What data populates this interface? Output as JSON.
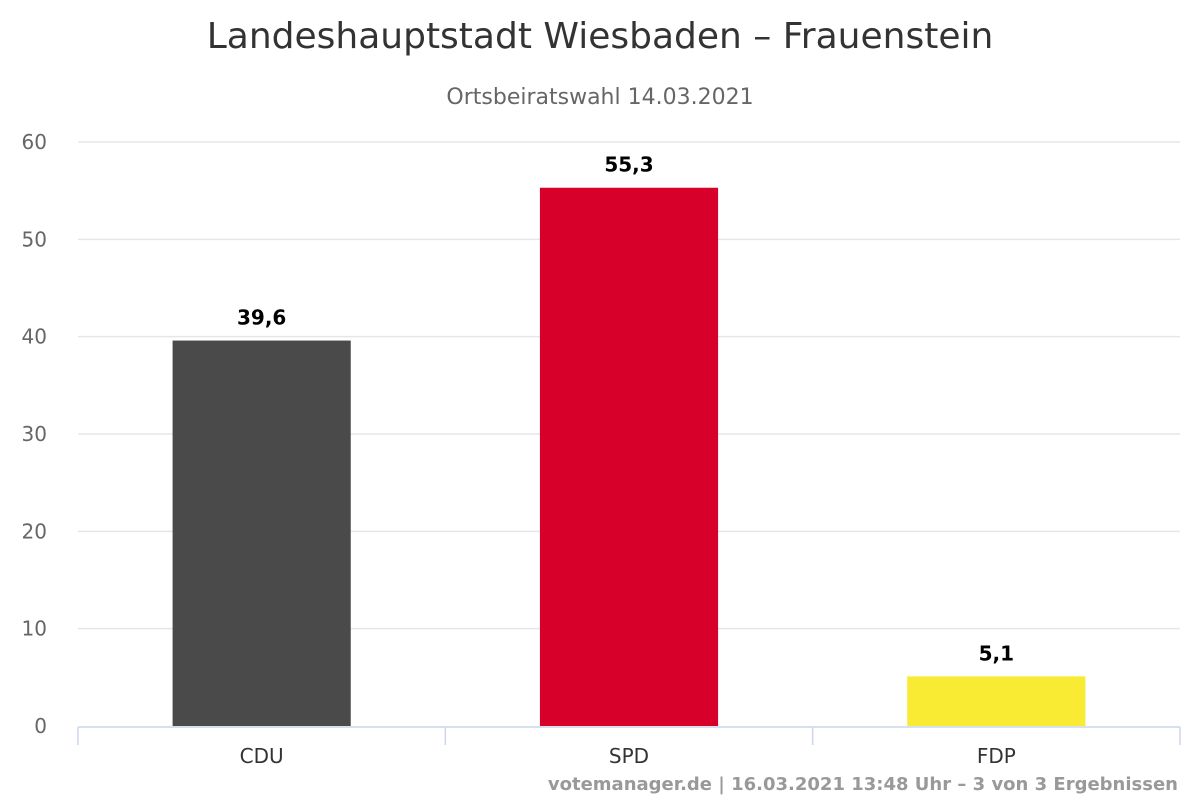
{
  "chart_data": {
    "type": "bar",
    "title": "Landeshauptstadt Wiesbaden – Frauenstein",
    "subtitle": "Ortsbeiratswahl 14.03.2021",
    "categories": [
      "CDU",
      "SPD",
      "FDP"
    ],
    "values": [
      39.6,
      55.3,
      5.1
    ],
    "data_labels": [
      "39,6",
      "55,3",
      "5,1"
    ],
    "colors": [
      "#4a4a4a",
      "#d6002a",
      "#f9ea33"
    ],
    "xlabel": "",
    "ylabel": "",
    "ylim": [
      0,
      60
    ],
    "yticks": [
      0,
      10,
      20,
      30,
      40,
      50,
      60
    ],
    "grid": true,
    "legend": "none"
  },
  "credits": "votemanager.de | 16.03.2021 13:48 Uhr – 3 von 3 Ergebnissen"
}
